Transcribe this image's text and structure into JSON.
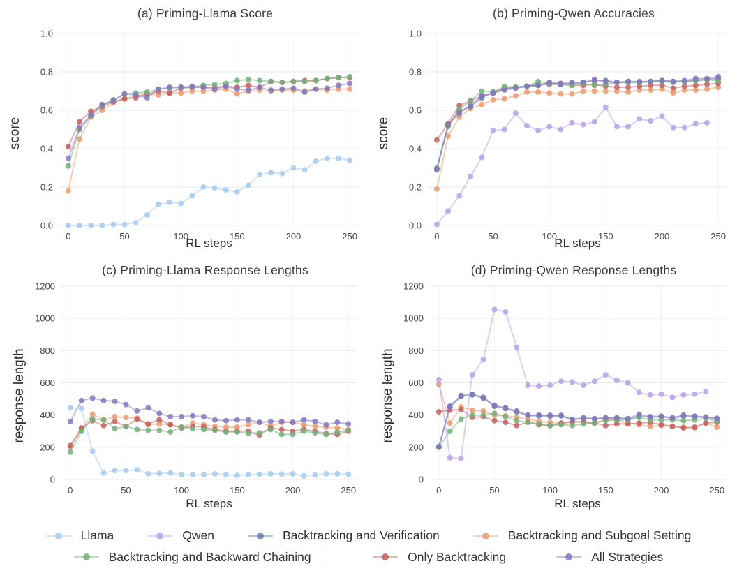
{
  "colors": {
    "llama": "#a7cbef",
    "qwen": "#b7a2e8",
    "verification": "#5f7da9",
    "subgoal": "#eb9a70",
    "backward": "#74b07b",
    "only": "#c5605f",
    "all": "#8478bd"
  },
  "legend": {
    "rows": [
      [
        {
          "key": "llama",
          "label": "Llama"
        },
        {
          "key": "qwen",
          "label": "Qwen"
        },
        {
          "key": "verification",
          "label": "Backtracking and Verification"
        },
        {
          "key": "subgoal",
          "label": "Backtracking and Subgoal Setting"
        }
      ],
      [
        {
          "key": "backward",
          "label": "Backtracking and Backward Chaining",
          "caret": true
        },
        {
          "key": "only",
          "label": "Only Backtracking"
        },
        {
          "key": "all",
          "label": "All Strategies"
        }
      ]
    ]
  },
  "chart_data": [
    {
      "type": "line",
      "title": "(a) Priming-Llama Score",
      "xlabel": "RL steps",
      "ylabel": "score",
      "xlim": [
        0,
        250
      ],
      "xpad": [
        -8,
        258
      ],
      "ylim": [
        0,
        1
      ],
      "xticks": [
        "0",
        "50",
        "100",
        "150",
        "200",
        "250"
      ],
      "yticks": [
        "0.0",
        "0.2",
        "0.4",
        "0.6",
        "0.8",
        "1.0"
      ],
      "grid": "on",
      "x_step": 10,
      "series": [
        {
          "key": "subgoal",
          "name": "Backtracking and Subgoal Setting",
          "values": [
            0.18,
            0.45,
            0.565,
            0.6,
            0.64,
            0.66,
            0.675,
            0.685,
            0.68,
            0.69,
            0.69,
            0.7,
            0.7,
            0.705,
            0.71,
            0.685,
            0.7,
            0.705,
            0.7,
            0.705,
            0.705,
            0.7,
            0.71,
            0.705,
            0.71,
            0.71
          ]
        },
        {
          "key": "only",
          "name": "Only Backtracking",
          "values": [
            0.41,
            0.54,
            0.595,
            0.62,
            0.645,
            0.66,
            0.665,
            0.685,
            0.7,
            0.69,
            0.715,
            0.72,
            0.72,
            0.72,
            0.725,
            0.72,
            0.73,
            0.72,
            0.75,
            0.745,
            0.75,
            0.755,
            0.755,
            0.765,
            0.77,
            0.77
          ]
        },
        {
          "key": "backward",
          "name": "Backtracking and Backward Chaining",
          "values": [
            0.31,
            0.5,
            0.57,
            0.625,
            0.655,
            0.685,
            0.69,
            0.695,
            0.71,
            0.715,
            0.72,
            0.72,
            0.73,
            0.735,
            0.74,
            0.755,
            0.76,
            0.755,
            0.75,
            0.745,
            0.75,
            0.75,
            0.755,
            0.765,
            0.77,
            0.775
          ]
        },
        {
          "key": "all",
          "name": "All Strategies",
          "values": [
            0.35,
            0.51,
            0.575,
            0.63,
            0.65,
            0.685,
            0.68,
            0.665,
            0.71,
            0.72,
            0.72,
            0.725,
            0.72,
            0.71,
            0.725,
            0.71,
            0.705,
            0.72,
            0.705,
            0.71,
            0.715,
            0.695,
            0.71,
            0.715,
            0.73,
            0.74
          ]
        },
        {
          "key": "llama",
          "name": "Llama",
          "values": [
            0.0,
            0.0,
            0.0,
            0.0,
            0.005,
            0.005,
            0.015,
            0.055,
            0.11,
            0.12,
            0.115,
            0.155,
            0.2,
            0.195,
            0.185,
            0.175,
            0.21,
            0.265,
            0.275,
            0.27,
            0.3,
            0.29,
            0.335,
            0.35,
            0.35,
            0.34
          ]
        }
      ]
    },
    {
      "type": "line",
      "title": "(b) Priming-Qwen Accuracies",
      "xlabel": "RL steps",
      "ylabel": "score",
      "xlim": [
        0,
        250
      ],
      "xpad": [
        -8,
        258
      ],
      "ylim": [
        0,
        1
      ],
      "xticks": [
        "0",
        "50",
        "100",
        "150",
        "200",
        "250"
      ],
      "yticks": [
        "0.0",
        "0.2",
        "0.4",
        "0.6",
        "0.8",
        "1.0"
      ],
      "grid": "on",
      "x_step": 10,
      "series": [
        {
          "key": "subgoal",
          "name": "Backtracking and Subgoal Setting",
          "values": [
            0.19,
            0.465,
            0.565,
            0.61,
            0.63,
            0.655,
            0.66,
            0.675,
            0.695,
            0.695,
            0.69,
            0.685,
            0.685,
            0.7,
            0.7,
            0.7,
            0.7,
            0.695,
            0.705,
            0.705,
            0.71,
            0.69,
            0.705,
            0.705,
            0.71,
            0.72
          ]
        },
        {
          "key": "only",
          "name": "Only Backtracking",
          "values": [
            0.445,
            0.53,
            0.625,
            0.65,
            0.675,
            0.69,
            0.715,
            0.72,
            0.725,
            0.735,
            0.735,
            0.735,
            0.73,
            0.73,
            0.735,
            0.725,
            0.72,
            0.72,
            0.725,
            0.73,
            0.73,
            0.715,
            0.725,
            0.73,
            0.735,
            0.74
          ]
        },
        {
          "key": "verification",
          "name": "Backtracking and Verification",
          "values": [
            0.29,
            0.52,
            0.595,
            0.62,
            0.665,
            0.695,
            0.71,
            0.72,
            0.725,
            0.73,
            0.74,
            0.735,
            0.74,
            0.745,
            0.755,
            0.755,
            0.745,
            0.75,
            0.745,
            0.75,
            0.755,
            0.75,
            0.75,
            0.755,
            0.76,
            0.765
          ]
        },
        {
          "key": "backward",
          "name": "Backtracking and Backward Chaining",
          "values": [
            0.3,
            0.515,
            0.605,
            0.65,
            0.7,
            0.695,
            0.725,
            0.72,
            0.725,
            0.75,
            0.74,
            0.74,
            0.73,
            0.74,
            0.73,
            0.735,
            0.745,
            0.745,
            0.745,
            0.75,
            0.75,
            0.745,
            0.75,
            0.755,
            0.76,
            0.755
          ]
        },
        {
          "key": "all",
          "name": "All Strategies",
          "values": [
            0.295,
            0.525,
            0.585,
            0.625,
            0.675,
            0.69,
            0.705,
            0.715,
            0.725,
            0.73,
            0.745,
            0.74,
            0.745,
            0.745,
            0.76,
            0.75,
            0.745,
            0.75,
            0.75,
            0.75,
            0.755,
            0.75,
            0.755,
            0.765,
            0.765,
            0.775
          ]
        },
        {
          "key": "qwen",
          "name": "Qwen",
          "values": [
            0.005,
            0.075,
            0.155,
            0.255,
            0.355,
            0.495,
            0.5,
            0.585,
            0.52,
            0.495,
            0.515,
            0.5,
            0.535,
            0.525,
            0.54,
            0.615,
            0.515,
            0.515,
            0.555,
            0.545,
            0.57,
            0.51,
            0.51,
            0.53,
            0.535
          ]
        }
      ]
    },
    {
      "type": "line",
      "title": "(c) Priming-Llama Response Lengths",
      "xlabel": "RL steps",
      "ylabel": "response length",
      "xlim": [
        0,
        250
      ],
      "xpad": [
        -8,
        258
      ],
      "ylim": [
        0,
        1200
      ],
      "xticks": [
        "0",
        "50",
        "100",
        "150",
        "200",
        "250"
      ],
      "yticks": [
        "0",
        "200",
        "400",
        "600",
        "800",
        "1000",
        "1200"
      ],
      "grid": "on",
      "x_step": 10,
      "series": [
        {
          "key": "subgoal",
          "name": "Backtracking and Subgoal Setting",
          "values": [
            205,
            310,
            405,
            370,
            390,
            385,
            380,
            340,
            345,
            340,
            325,
            350,
            340,
            330,
            325,
            325,
            340,
            355,
            330,
            355,
            355,
            340,
            330,
            325,
            320,
            310
          ]
        },
        {
          "key": "only",
          "name": "Only Backtracking",
          "values": [
            210,
            320,
            365,
            335,
            360,
            330,
            375,
            345,
            370,
            340,
            320,
            330,
            325,
            310,
            300,
            300,
            300,
            275,
            320,
            310,
            300,
            310,
            300,
            285,
            280,
            300
          ]
        },
        {
          "key": "backward",
          "name": "Backtracking and Backward Chaining",
          "values": [
            170,
            300,
            375,
            370,
            315,
            330,
            310,
            305,
            305,
            295,
            325,
            315,
            310,
            305,
            295,
            295,
            285,
            290,
            310,
            280,
            280,
            300,
            290,
            280,
            295,
            305
          ]
        },
        {
          "key": "all",
          "name": "All Strategies",
          "values": [
            360,
            490,
            505,
            490,
            485,
            465,
            425,
            445,
            410,
            390,
            390,
            395,
            390,
            370,
            365,
            370,
            370,
            355,
            360,
            360,
            355,
            370,
            360,
            340,
            355,
            345
          ]
        },
        {
          "key": "llama",
          "name": "Llama",
          "values": [
            445,
            440,
            175,
            40,
            55,
            55,
            60,
            35,
            38,
            40,
            30,
            30,
            30,
            35,
            30,
            25,
            30,
            32,
            35,
            33,
            35,
            22,
            28,
            35,
            35,
            32
          ]
        }
      ]
    },
    {
      "type": "line",
      "title": "(d) Priming-Qwen Response Lengths",
      "xlabel": "RL steps",
      "ylabel": "response length",
      "xlim": [
        0,
        250
      ],
      "xpad": [
        -8,
        258
      ],
      "ylim": [
        0,
        1200
      ],
      "xticks": [
        "0",
        "50",
        "100",
        "150",
        "200",
        "250"
      ],
      "yticks": [
        "0",
        "200",
        "400",
        "600",
        "800",
        "1000",
        "1200"
      ],
      "grid": "on",
      "x_step": 10,
      "series": [
        {
          "key": "verification",
          "name": "Backtracking and Verification",
          "values": [
            200,
            450,
            515,
            525,
            505,
            455,
            440,
            420,
            395,
            395,
            393,
            395,
            370,
            380,
            375,
            380,
            380,
            375,
            393,
            385,
            390,
            380,
            393,
            390,
            385,
            375
          ]
        },
        {
          "key": "subgoal",
          "name": "Backtracking and Subgoal Setting",
          "values": [
            590,
            350,
            450,
            430,
            425,
            400,
            395,
            385,
            375,
            360,
            355,
            350,
            355,
            360,
            350,
            375,
            370,
            350,
            340,
            330,
            335,
            330,
            325,
            320,
            350,
            325
          ]
        },
        {
          "key": "only",
          "name": "Only Backtracking",
          "values": [
            420,
            430,
            435,
            385,
            390,
            365,
            355,
            335,
            355,
            340,
            335,
            350,
            360,
            355,
            350,
            335,
            345,
            345,
            350,
            355,
            340,
            330,
            320,
            325,
            350,
            355
          ]
        },
        {
          "key": "backward",
          "name": "Backtracking and Backward Chaining",
          "values": [
            200,
            300,
            375,
            400,
            400,
            410,
            390,
            365,
            355,
            345,
            335,
            340,
            335,
            345,
            350,
            365,
            370,
            370,
            385,
            370,
            370,
            370,
            365,
            370,
            380,
            360
          ]
        },
        {
          "key": "all",
          "name": "All Strategies",
          "values": [
            205,
            455,
            522,
            530,
            510,
            460,
            445,
            425,
            400,
            400,
            398,
            398,
            373,
            383,
            378,
            383,
            383,
            378,
            405,
            390,
            393,
            383,
            400,
            393,
            388,
            380
          ]
        },
        {
          "key": "qwen",
          "name": "Qwen",
          "values": [
            620,
            135,
            130,
            650,
            745,
            1055,
            1040,
            820,
            585,
            580,
            585,
            610,
            605,
            585,
            610,
            650,
            615,
            600,
            540,
            525,
            530,
            510,
            525,
            530,
            545
          ]
        }
      ]
    }
  ]
}
